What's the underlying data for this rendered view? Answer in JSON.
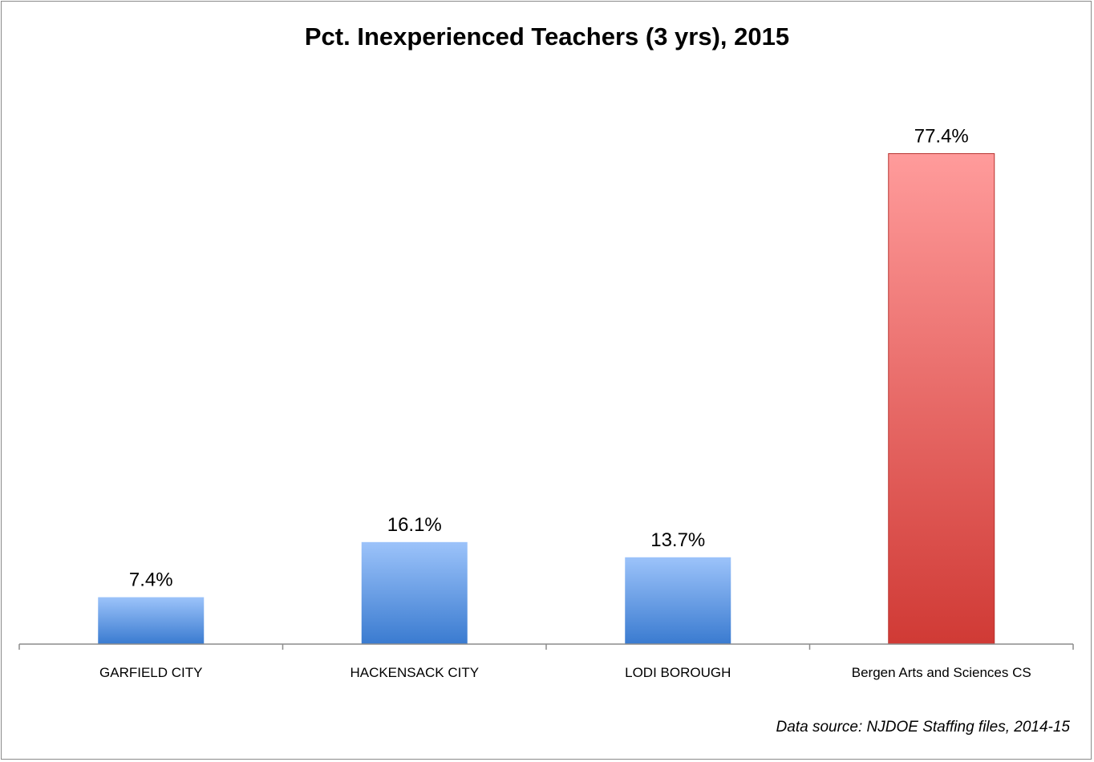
{
  "chart_data": {
    "type": "bar",
    "title": "Pct. Inexperienced Teachers (3 yrs), 2015",
    "categories": [
      "GARFIELD CITY",
      "HACKENSACK CITY",
      "LODI BOROUGH",
      "Bergen Arts and Sciences CS"
    ],
    "values": [
      7.4,
      16.1,
      13.7,
      77.4
    ],
    "value_labels": [
      "7.4%",
      "16.1%",
      "13.7%",
      "77.4%"
    ],
    "xlabel": "",
    "ylabel": "",
    "ylim": [
      0,
      90
    ],
    "grid": false,
    "legend": "none",
    "bar_colors": [
      "blue",
      "blue",
      "blue",
      "red"
    ],
    "colors": {
      "blue_top": "#9cc3fa",
      "blue_bottom": "#3a7bd0",
      "red_top": "#ff9b9b",
      "red_bottom": "#d03a35"
    },
    "source_note": "Data source: NJDOE Staffing files, 2014-15"
  }
}
